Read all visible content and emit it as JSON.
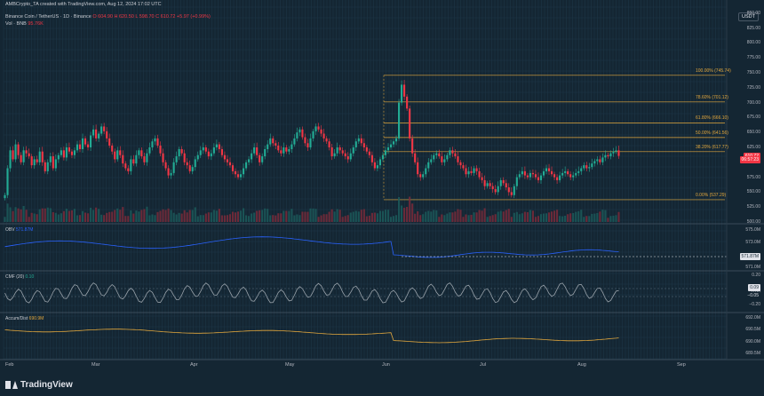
{
  "header": {
    "published_by": "AMBCrypto_TA created with TradingView.com, Aug 12, 2024 17:02 UTC",
    "symbol": "Binance Coin / TetherUS · 1D · Binance",
    "ohlc": "O 604.90  H 620.50  L 598.70  C 610.72  +5.97 (+0.99%)",
    "vol_label": "Vol · BNB",
    "vol_value": "95.76K",
    "currency": "USDT"
  },
  "price_axis": [
    {
      "label": "850.00",
      "value": 850
    },
    {
      "label": "825.00",
      "value": 825
    },
    {
      "label": "800.00",
      "value": 800
    },
    {
      "label": "775.00",
      "value": 775
    },
    {
      "label": "750.00",
      "value": 750
    },
    {
      "label": "725.00",
      "value": 725
    },
    {
      "label": "700.00",
      "value": 700
    },
    {
      "label": "675.00",
      "value": 675
    },
    {
      "label": "650.00",
      "value": 650
    },
    {
      "label": "625.00",
      "value": 625
    },
    {
      "label": "575.00",
      "value": 575
    },
    {
      "label": "550.00",
      "value": 550
    },
    {
      "label": "525.00",
      "value": 525
    },
    {
      "label": "500.00",
      "value": 500
    }
  ],
  "price_tags": [
    {
      "label": "610.72",
      "value": 610.72,
      "color": "#f23645"
    },
    {
      "label": "06:57:23",
      "value": 604.5,
      "color": "#f23645"
    }
  ],
  "fib_levels": [
    {
      "label": "100.00% (745.74)",
      "value": 745.74
    },
    {
      "label": "78.60% (701.12)",
      "value": 701.12
    },
    {
      "label": "61.80% (666.10)",
      "value": 666.1
    },
    {
      "label": "50.00% (641.56)",
      "value": 641.56
    },
    {
      "label": "38.20% (617.77)",
      "value": 617.77
    },
    {
      "label": "0.00% (537.29)",
      "value": 537.29
    }
  ],
  "obv": {
    "label": "OBV",
    "value": "571.87M",
    "axis": [
      "575.0M",
      "573.0M",
      "571.0M"
    ],
    "tag": "571.87M"
  },
  "cmf": {
    "label": "CMF (20)",
    "value": "0.10",
    "axis": [
      "0.20",
      "0.00",
      "−0.20"
    ],
    "tags": [
      "0.09",
      "−0.05"
    ]
  },
  "accum": {
    "label": "Accum/Dist",
    "value": "690.9M",
    "axis": [
      "692.0M",
      "690.5M",
      "690.0M",
      "689.5M"
    ]
  },
  "time_axis": [
    "Feb",
    "Mar",
    "Apr",
    "May",
    "Jun",
    "Jul",
    "Aug",
    "Sep"
  ],
  "brand": "TradingView",
  "colors": {
    "up": "#22ab94",
    "down": "#f23645",
    "fib": "#e2a73d",
    "obv": "#2962ff",
    "cmf": "#9aa3ab",
    "accum": "#e2a73d",
    "background": "#142633"
  },
  "chart_data": {
    "type": "candlestick",
    "series": [
      {
        "name": "BNBUSDT",
        "close": [
          545,
          590,
          620,
          605,
          630,
          612,
          600,
          620,
          615,
          610,
          595,
          605,
          600,
          618,
          600,
          585,
          600,
          610,
          590,
          605,
          612,
          620,
          608,
          625,
          618,
          612,
          620,
          630,
          622,
          640,
          630,
          625,
          645,
          655,
          640,
          648,
          660,
          652,
          640,
          628,
          618,
          605,
          620,
          612,
          598,
          590,
          585,
          605,
          598,
          612,
          620,
          610,
          600,
          615,
          625,
          635,
          640,
          628,
          615,
          600,
          590,
          578,
          582,
          600,
          610,
          622,
          615,
          600,
          595,
          585,
          592,
          605,
          612,
          620,
          625,
          618,
          610,
          615,
          625,
          630,
          622,
          612,
          605,
          600,
          595,
          585,
          580,
          575,
          580,
          590,
          600,
          605,
          615,
          625,
          612,
          600,
          610,
          622,
          630,
          640,
          632,
          628,
          620,
          615,
          625,
          618,
          622,
          630,
          640,
          650,
          655,
          642,
          632,
          625,
          640,
          652,
          660,
          655,
          648,
          640,
          635,
          625,
          610,
          615,
          625,
          620,
          615,
          610,
          605,
          615,
          625,
          635,
          640,
          632,
          625,
          618,
          612,
          600,
          590,
          595,
          605,
          612,
          620,
          625,
          630,
          635,
          640,
          700,
          730,
          710,
          690,
          640,
          615,
          600,
          580,
          575,
          580,
          590,
          600,
          605,
          612,
          615,
          610,
          600,
          605,
          612,
          620,
          615,
          610,
          600,
          595,
          590,
          580,
          585,
          582,
          590,
          585,
          575,
          570,
          560,
          565,
          560,
          555,
          550,
          560,
          570,
          565,
          558,
          550,
          545,
          560,
          575,
          580,
          585,
          578,
          575,
          582,
          580,
          575,
          570,
          578,
          585,
          590,
          585,
          580,
          575,
          570,
          578,
          582,
          585,
          580,
          575,
          578,
          582,
          585,
          590,
          595,
          590,
          592,
          598,
          602,
          605,
          600,
          608,
          612,
          610,
          615,
          618,
          620,
          610.72
        ]
      }
    ],
    "ylim": [
      500,
      860
    ],
    "x_labels": [
      "Feb",
      "Mar",
      "Apr",
      "May",
      "Jun",
      "Jul",
      "Aug",
      "Sep"
    ]
  }
}
